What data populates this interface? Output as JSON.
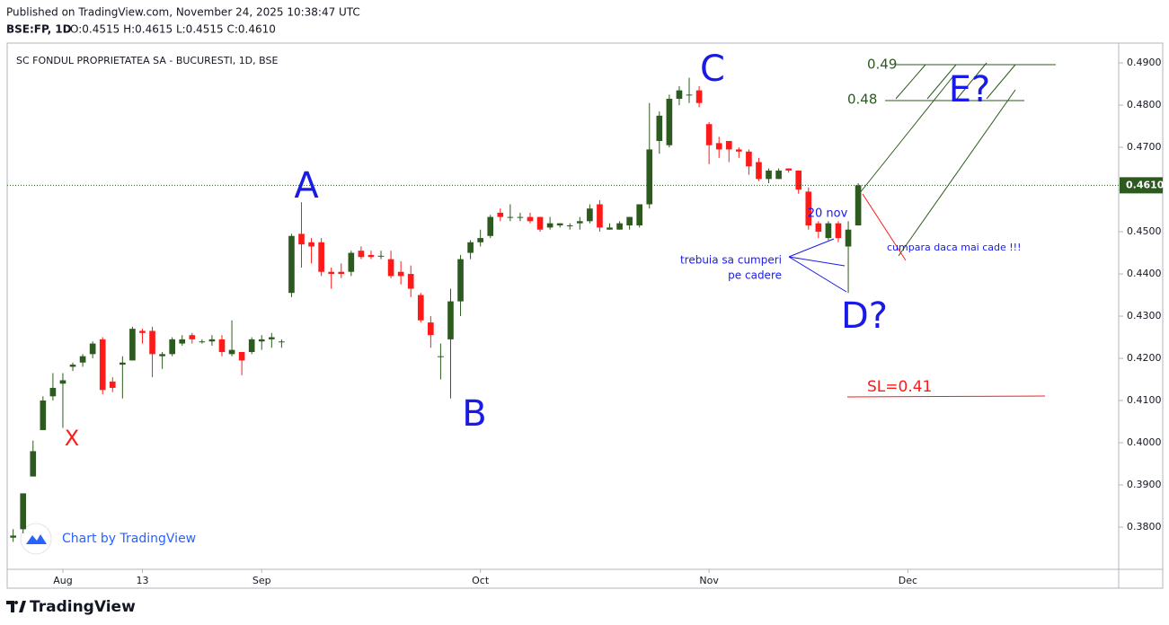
{
  "header": {
    "published": "Published on TradingView.com, November 24, 2025 10:38:47 UTC",
    "symbol": "BSE:FP, 1D",
    "ohlc": "O:0.4515 H:0.4615 L:0.4515 C:0.4610"
  },
  "footer": {
    "brand": "TradingView",
    "watermark": "Chart by TradingView"
  },
  "chart_data": {
    "type": "candlestick",
    "title": "SC FONDUL PROPRIETATEA SA - BUCURESTI, 1D, BSE",
    "up_color": "#2d5a1e",
    "down_color": "#ff1a1a",
    "open": [
      0.3775,
      0.3795,
      0.392,
      0.403,
      0.411,
      0.414,
      0.418,
      0.419,
      0.421,
      0.4245,
      0.4145,
      0.4185,
      0.4195,
      0.4265,
      0.4265,
      0.4205,
      0.421,
      0.4235,
      0.4255,
      0.4238,
      0.424,
      0.4245,
      0.421,
      0.4215,
      0.4215,
      0.424,
      0.4245,
      0.424,
      0.4355,
      0.4495,
      0.4475,
      0.4475,
      0.4405,
      0.4405,
      0.4405,
      0.4455,
      0.4445,
      0.4443,
      0.4435,
      0.4405,
      0.44,
      0.435,
      0.4285,
      0.4205,
      0.4245,
      0.4335,
      0.445,
      0.4475,
      0.449,
      0.4545,
      0.4535,
      0.4535,
      0.4535,
      0.4535,
      0.451,
      0.4515,
      0.4515,
      0.452,
      0.4525,
      0.4565,
      0.4505,
      0.4505,
      0.4515,
      0.4515,
      0.4565,
      0.4715,
      0.4705,
      0.4815,
      0.4825,
      0.4835,
      0.4755,
      0.471,
      0.4715,
      0.4695,
      0.469,
      0.4665,
      0.4625,
      0.4625,
      0.465,
      0.4645,
      0.4595,
      0.452,
      0.4485,
      0.452,
      0.4465,
      0.4515
    ],
    "high": [
      0.3795,
      0.388,
      0.4005,
      0.411,
      0.4165,
      0.4165,
      0.419,
      0.421,
      0.424,
      0.425,
      0.4155,
      0.4205,
      0.4275,
      0.427,
      0.4275,
      0.4215,
      0.425,
      0.4255,
      0.426,
      0.4245,
      0.4255,
      0.4255,
      0.429,
      0.4215,
      0.425,
      0.4255,
      0.426,
      0.4245,
      0.4495,
      0.457,
      0.4485,
      0.4485,
      0.4415,
      0.4425,
      0.4455,
      0.4465,
      0.4455,
      0.4455,
      0.4455,
      0.443,
      0.442,
      0.4355,
      0.43,
      0.4235,
      0.4365,
      0.4445,
      0.448,
      0.4505,
      0.454,
      0.4555,
      0.4565,
      0.4545,
      0.4545,
      0.4535,
      0.4535,
      0.452,
      0.452,
      0.4535,
      0.4565,
      0.4575,
      0.452,
      0.4525,
      0.4535,
      0.4565,
      0.4805,
      0.4785,
      0.4825,
      0.4845,
      0.4865,
      0.4845,
      0.476,
      0.4725,
      0.4715,
      0.47,
      0.4695,
      0.4675,
      0.465,
      0.465,
      0.465,
      0.4645,
      0.4605,
      0.4525,
      0.4525,
      0.4525,
      0.4525,
      0.4615
    ],
    "low": [
      0.3765,
      0.3785,
      0.392,
      0.403,
      0.41,
      0.4035,
      0.417,
      0.418,
      0.42,
      0.4115,
      0.412,
      0.4105,
      0.4195,
      0.4235,
      0.4155,
      0.4175,
      0.4205,
      0.423,
      0.4235,
      0.4235,
      0.423,
      0.4205,
      0.4205,
      0.416,
      0.421,
      0.422,
      0.4225,
      0.4225,
      0.4345,
      0.4415,
      0.4425,
      0.4395,
      0.4365,
      0.439,
      0.4395,
      0.4435,
      0.4435,
      0.4435,
      0.439,
      0.4375,
      0.4345,
      0.4285,
      0.4225,
      0.415,
      0.4105,
      0.43,
      0.4435,
      0.4465,
      0.4485,
      0.4525,
      0.4525,
      0.4525,
      0.452,
      0.45,
      0.4505,
      0.451,
      0.4505,
      0.4505,
      0.452,
      0.45,
      0.4505,
      0.4505,
      0.4505,
      0.451,
      0.4555,
      0.4685,
      0.47,
      0.48,
      0.4805,
      0.4795,
      0.466,
      0.4675,
      0.4665,
      0.4675,
      0.4635,
      0.462,
      0.4615,
      0.4625,
      0.464,
      0.459,
      0.4505,
      0.4485,
      0.448,
      0.4475,
      0.4355,
      0.4515
    ],
    "close": [
      0.378,
      0.388,
      0.398,
      0.41,
      0.413,
      0.4148,
      0.4185,
      0.4205,
      0.4235,
      0.4125,
      0.413,
      0.419,
      0.427,
      0.426,
      0.421,
      0.421,
      0.4245,
      0.4245,
      0.4245,
      0.424,
      0.4245,
      0.4215,
      0.422,
      0.4195,
      0.4245,
      0.4245,
      0.425,
      0.424,
      0.449,
      0.447,
      0.4465,
      0.4405,
      0.44,
      0.44,
      0.445,
      0.444,
      0.444,
      0.4443,
      0.4395,
      0.4395,
      0.4365,
      0.429,
      0.4255,
      0.4205,
      0.4335,
      0.4435,
      0.4475,
      0.4485,
      0.4535,
      0.4535,
      0.4535,
      0.4535,
      0.4525,
      0.4505,
      0.452,
      0.452,
      0.4515,
      0.4525,
      0.4555,
      0.451,
      0.451,
      0.452,
      0.4535,
      0.4565,
      0.4695,
      0.4775,
      0.4815,
      0.4835,
      0.4825,
      0.4805,
      0.4705,
      0.4695,
      0.4695,
      0.469,
      0.4655,
      0.4625,
      0.4645,
      0.4645,
      0.4645,
      0.46,
      0.4515,
      0.45,
      0.452,
      0.4485,
      0.4505,
      0.461
    ],
    "last_price": {
      "value": 0.461,
      "label": "0.4610"
    },
    "xlim": [
      -0.6,
      111.2
    ],
    "xticks": [
      {
        "value": 5,
        "label": "Aug"
      },
      {
        "value": 13,
        "label": "13"
      },
      {
        "value": 25,
        "label": "Sep"
      },
      {
        "value": 47,
        "label": "Oct"
      },
      {
        "value": 70,
        "label": "Nov"
      },
      {
        "value": 90,
        "label": "Dec"
      }
    ],
    "ylim": [
      0.37,
      0.4947
    ],
    "yticks": [
      {
        "value": 0.38,
        "label": "0.3800"
      },
      {
        "value": 0.39,
        "label": "0.3900"
      },
      {
        "value": 0.4,
        "label": "0.4000"
      },
      {
        "value": 0.41,
        "label": "0.4100"
      },
      {
        "value": 0.42,
        "label": "0.4200"
      },
      {
        "value": 0.43,
        "label": "0.4300"
      },
      {
        "value": 0.44,
        "label": "0.4400"
      },
      {
        "value": 0.45,
        "label": "0.4500"
      },
      {
        "value": 0.46,
        "label": "0.4600"
      },
      {
        "value": 0.47,
        "label": "0.4700"
      },
      {
        "value": 0.48,
        "label": "0.4800"
      },
      {
        "value": 0.49,
        "label": "0.4900"
      }
    ],
    "annotations": [
      "X",
      "A",
      "B",
      "C",
      "D?",
      "E?",
      "20 nov",
      "trebuia sa cumperi",
      "pe cadere",
      "cumpara daca mai cade !!!",
      "0.49",
      "0.48",
      "SL=0.41"
    ]
  }
}
